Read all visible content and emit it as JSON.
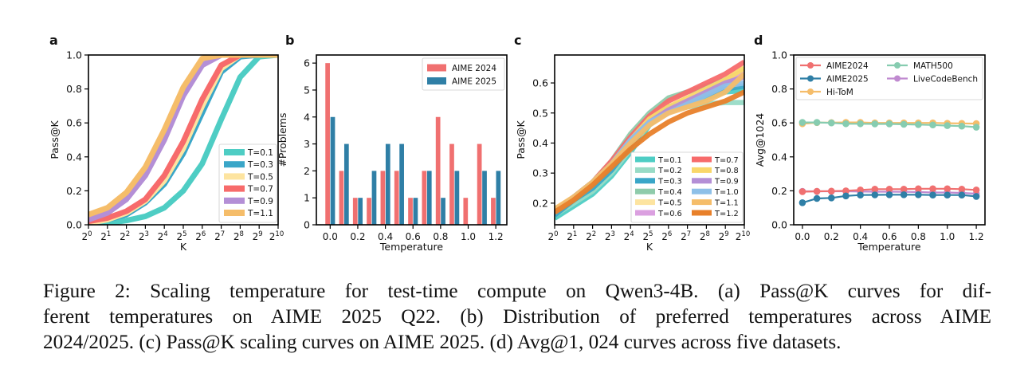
{
  "figure": {
    "caption_lines": [
      "Figure 2:  Scaling temperature for test-time compute on Qwen3-4B. (a) Pass@K curves for dif-",
      "ferent temperatures on AIME 2025 Q22.  (b) Distribution of preferred temperatures across AIME",
      "2024/2025. (c) Pass@K scaling curves on AIME 2025. (d) Avg@1, 024 curves across five datasets."
    ]
  },
  "chart_data": [
    {
      "panel": "a",
      "type": "line",
      "title": "",
      "xlabel": "K",
      "ylabel": "Pass@K",
      "xscale": "log2",
      "x": [
        0,
        1,
        2,
        3,
        4,
        5,
        6,
        7,
        8,
        9,
        10
      ],
      "xtick_labels": [
        "2^0",
        "2^1",
        "2^2",
        "2^3",
        "2^4",
        "2^5",
        "2^6",
        "2^7",
        "2^8",
        "2^9",
        "2^10"
      ],
      "ylim": [
        0,
        1
      ],
      "yticks": [
        0.0,
        0.2,
        0.4,
        0.6,
        0.8,
        1.0
      ],
      "legend_position": "lower-right",
      "series": [
        {
          "name": "T=0.1",
          "color": "#4ecdc4",
          "values": [
            0.0,
            0.01,
            0.025,
            0.05,
            0.1,
            0.2,
            0.36,
            0.62,
            0.87,
            0.99,
            1.0
          ]
        },
        {
          "name": "T=0.3",
          "color": "#3aa6c8",
          "values": [
            0.01,
            0.03,
            0.06,
            0.13,
            0.24,
            0.42,
            0.66,
            0.9,
            0.99,
            1.0,
            1.0
          ]
        },
        {
          "name": "T=0.5",
          "color": "#fde4a0",
          "values": [
            0.01,
            0.03,
            0.07,
            0.14,
            0.26,
            0.45,
            0.7,
            0.92,
            1.0,
            1.0,
            1.0
          ]
        },
        {
          "name": "T=0.7",
          "color": "#f76b6b",
          "values": [
            0.02,
            0.04,
            0.08,
            0.15,
            0.29,
            0.49,
            0.74,
            0.94,
            1.0,
            1.0,
            1.0
          ]
        },
        {
          "name": "T=0.9",
          "color": "#b48fd6",
          "values": [
            0.03,
            0.07,
            0.15,
            0.29,
            0.5,
            0.76,
            0.94,
            1.0,
            1.0,
            1.0,
            1.0
          ]
        },
        {
          "name": "T=1.1",
          "color": "#f5bd6a",
          "values": [
            0.06,
            0.1,
            0.19,
            0.34,
            0.56,
            0.81,
            0.98,
            1.0,
            1.0,
            1.0,
            1.0
          ]
        }
      ]
    },
    {
      "panel": "b",
      "type": "bar",
      "title": "",
      "xlabel": "Temperature",
      "ylabel": "#Problems",
      "categories": [
        0.0,
        0.1,
        0.2,
        0.3,
        0.4,
        0.5,
        0.6,
        0.7,
        0.8,
        0.9,
        1.0,
        1.1,
        1.2
      ],
      "xtick_labels": [
        "0.0",
        "0.2",
        "0.4",
        "0.6",
        "0.8",
        "1.0",
        "1.2"
      ],
      "ylim": [
        0,
        6.3
      ],
      "yticks": [
        0,
        1,
        2,
        3,
        4,
        5,
        6
      ],
      "legend_position": "top-right",
      "series": [
        {
          "name": "AIME 2024",
          "color": "#f07070",
          "values": [
            6,
            2,
            1,
            1,
            2,
            2,
            1,
            2,
            4,
            3,
            1,
            3,
            1
          ]
        },
        {
          "name": "AIME 2025",
          "color": "#2f7fa6",
          "values": [
            4,
            3,
            1,
            2,
            3,
            3,
            1,
            2,
            1,
            2,
            0,
            2,
            2
          ]
        }
      ]
    },
    {
      "panel": "c",
      "type": "line",
      "title": "",
      "xlabel": "K",
      "ylabel": "Pass@K",
      "xscale": "log2",
      "x": [
        0,
        1,
        2,
        3,
        4,
        5,
        6,
        7,
        8,
        9,
        10
      ],
      "xtick_labels": [
        "2^0",
        "2^1",
        "2^2",
        "2^3",
        "2^4",
        "2^5",
        "2^6",
        "2^7",
        "2^8",
        "2^9",
        "2^10"
      ],
      "ylim": [
        0.128,
        0.693
      ],
      "yticks": [
        0.2,
        0.3,
        0.4,
        0.5,
        0.6
      ],
      "legend_position": "lower-right",
      "series": [
        {
          "name": "T=0.1",
          "color": "#4ecdc4",
          "values": [
            0.15,
            0.19,
            0.23,
            0.29,
            0.37,
            0.46,
            0.51,
            0.53,
            0.55,
            0.57,
            0.575
          ]
        },
        {
          "name": "T=0.2",
          "color": "#98dbc6",
          "values": [
            0.16,
            0.2,
            0.24,
            0.3,
            0.38,
            0.47,
            0.51,
            0.52,
            0.53,
            0.535,
            0.535
          ]
        },
        {
          "name": "T=0.3",
          "color": "#3aa6c8",
          "values": [
            0.16,
            0.21,
            0.25,
            0.31,
            0.39,
            0.47,
            0.52,
            0.54,
            0.56,
            0.58,
            0.59
          ]
        },
        {
          "name": "T=0.4",
          "color": "#8fcbab",
          "values": [
            0.17,
            0.22,
            0.27,
            0.34,
            0.43,
            0.5,
            0.55,
            0.57,
            0.59,
            0.61,
            0.64
          ]
        },
        {
          "name": "T=0.5",
          "color": "#fde4a0",
          "values": [
            0.18,
            0.22,
            0.27,
            0.33,
            0.41,
            0.47,
            0.51,
            0.54,
            0.57,
            0.6,
            0.64
          ]
        },
        {
          "name": "T=0.6",
          "color": "#dba0e0",
          "values": [
            0.17,
            0.22,
            0.27,
            0.33,
            0.41,
            0.47,
            0.51,
            0.54,
            0.57,
            0.6,
            0.63
          ]
        },
        {
          "name": "T=0.7",
          "color": "#f76b6b",
          "values": [
            0.17,
            0.22,
            0.27,
            0.34,
            0.42,
            0.49,
            0.54,
            0.57,
            0.6,
            0.63,
            0.67
          ]
        },
        {
          "name": "T=0.8",
          "color": "#f9d76a",
          "values": [
            0.17,
            0.22,
            0.27,
            0.33,
            0.41,
            0.48,
            0.52,
            0.55,
            0.58,
            0.61,
            0.65
          ]
        },
        {
          "name": "T=0.9",
          "color": "#b48fd6",
          "values": [
            0.17,
            0.22,
            0.27,
            0.33,
            0.41,
            0.47,
            0.51,
            0.54,
            0.57,
            0.6,
            0.62
          ]
        },
        {
          "name": "T=1.0",
          "color": "#8ec0e8",
          "values": [
            0.17,
            0.22,
            0.27,
            0.33,
            0.41,
            0.47,
            0.5,
            0.53,
            0.56,
            0.59,
            0.6
          ]
        },
        {
          "name": "T=1.1",
          "color": "#f5bd6a",
          "values": [
            0.18,
            0.22,
            0.27,
            0.33,
            0.4,
            0.46,
            0.5,
            0.52,
            0.54,
            0.57,
            0.63
          ]
        },
        {
          "name": "T=1.2",
          "color": "#e8802a",
          "values": [
            0.17,
            0.21,
            0.26,
            0.32,
            0.38,
            0.43,
            0.47,
            0.5,
            0.52,
            0.54,
            0.57
          ]
        }
      ]
    },
    {
      "panel": "d",
      "type": "line",
      "title": "",
      "xlabel": "Temperature",
      "ylabel": "Avg@1024",
      "x": [
        0.0,
        0.1,
        0.2,
        0.3,
        0.4,
        0.5,
        0.6,
        0.7,
        0.8,
        0.9,
        1.0,
        1.1,
        1.2
      ],
      "xtick_labels": [
        "0.0",
        "0.2",
        "0.4",
        "0.6",
        "0.8",
        "1.0",
        "1.2"
      ],
      "xlim": [
        -0.06,
        1.26
      ],
      "ylim": [
        0,
        1
      ],
      "yticks": [
        0.0,
        0.2,
        0.4,
        0.6,
        0.8,
        1.0
      ],
      "legend_position": "top",
      "series": [
        {
          "name": "AIME2024",
          "color": "#f07070",
          "values": [
            0.195,
            0.197,
            0.198,
            0.2,
            0.205,
            0.21,
            0.21,
            0.21,
            0.212,
            0.212,
            0.212,
            0.21,
            0.205
          ]
        },
        {
          "name": "AIME2025",
          "color": "#2f7fa6",
          "values": [
            0.13,
            0.155,
            0.158,
            0.17,
            0.175,
            0.176,
            0.177,
            0.177,
            0.177,
            0.175,
            0.175,
            0.175,
            0.167
          ]
        },
        {
          "name": "Hi-ToM",
          "color": "#f5bd6a",
          "values": [
            0.595,
            0.602,
            0.602,
            0.603,
            0.603,
            0.6,
            0.6,
            0.6,
            0.6,
            0.6,
            0.598,
            0.597,
            0.596
          ]
        },
        {
          "name": "MATH500",
          "color": "#86ccb0",
          "values": [
            0.603,
            0.603,
            0.6,
            0.595,
            0.595,
            0.594,
            0.594,
            0.592,
            0.59,
            0.588,
            0.584,
            0.581,
            0.575
          ]
        },
        {
          "name": "LiveCodeBench",
          "color": "#c08ad0",
          "values": [
            0.197,
            0.197,
            0.197,
            0.197,
            0.196,
            0.195,
            0.195,
            0.194,
            0.193,
            0.19,
            0.19,
            0.188,
            0.183
          ]
        }
      ]
    }
  ],
  "panels": {
    "labels": [
      "a",
      "b",
      "c",
      "d"
    ]
  }
}
